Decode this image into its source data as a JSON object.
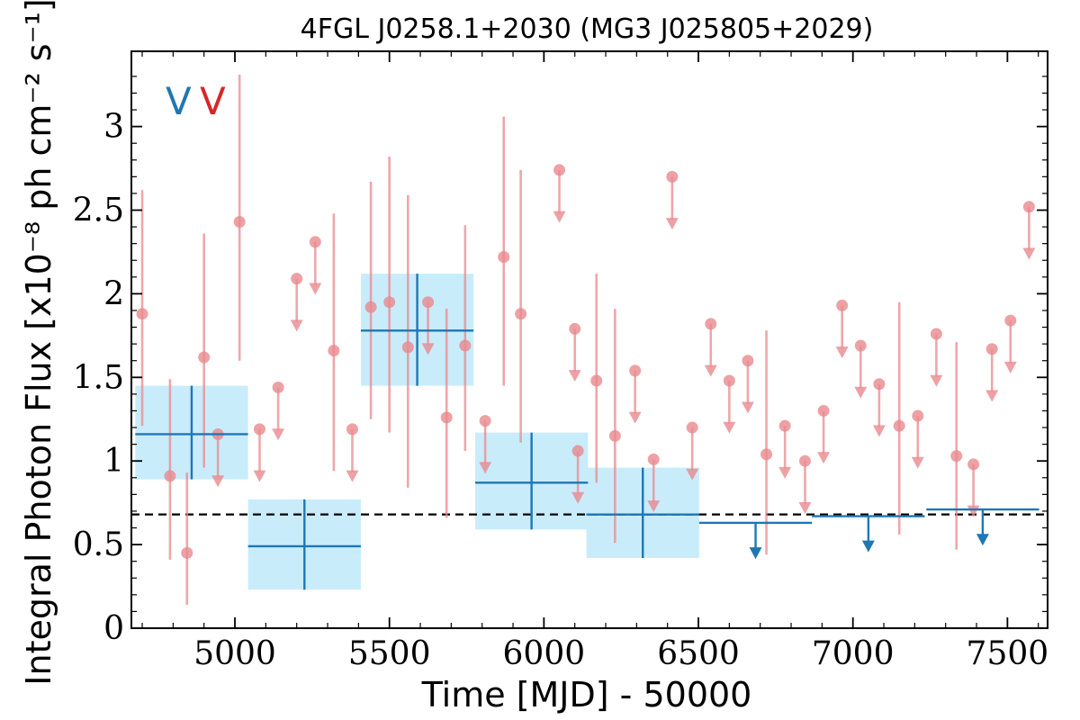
{
  "chart_data": {
    "type": "scatter",
    "title": "4FGL J0258.1+2030 (MG3 J025805+2029)",
    "xlabel": "Time [MJD] - 50000",
    "ylabel": "Integral Photon Flux [x10⁻⁸ ph cm⁻² s⁻¹]",
    "xlim": [
      4665,
      7630
    ],
    "ylim": [
      0,
      3.45
    ],
    "x_ticks": [
      5000,
      5500,
      6000,
      6500,
      7000,
      7500
    ],
    "x_tick_labels": [
      "5000",
      "5500",
      "6000",
      "6500",
      "7000",
      "7500"
    ],
    "y_ticks": [
      0,
      0.5,
      1,
      1.5,
      2,
      2.5,
      3
    ],
    "y_tick_labels": [
      "0",
      "0.5",
      "1",
      "1.5",
      "2",
      "2.5",
      "3"
    ],
    "grid": false,
    "reference_line": {
      "y": 0.68,
      "style": "dashed",
      "color": "#000000"
    },
    "legend": {
      "placement": "top-left",
      "entries": [
        {
          "label": "V",
          "color": "#1f77b4"
        },
        {
          "label": "V",
          "color": "#d62728"
        }
      ]
    },
    "colors": {
      "long_bin": "#1f77b4",
      "long_bin_box": "#c9ecfb",
      "short_bin": "#e88a8e",
      "short_bin_marker": "#e88a8e"
    },
    "series": [
      {
        "color_key": "long_bin",
        "bin_width": 365,
        "detections": [
          {
            "x": 4860,
            "y": 1.16,
            "yerr_low": 0.27,
            "yerr_high": 0.29
          },
          {
            "x": 5225,
            "y": 0.49,
            "yerr_low": 0.26,
            "yerr_high": 0.28
          },
          {
            "x": 5590,
            "y": 1.78,
            "yerr_low": 0.33,
            "yerr_high": 0.34
          },
          {
            "x": 5960,
            "y": 0.87,
            "yerr_low": 0.28,
            "yerr_high": 0.3
          },
          {
            "x": 6320,
            "y": 0.68,
            "yerr_low": 0.26,
            "yerr_high": 0.28
          }
        ],
        "upper_limits": [
          {
            "x": 6685,
            "y": 0.63
          },
          {
            "x": 7050,
            "y": 0.67
          },
          {
            "x": 7420,
            "y": 0.71
          }
        ]
      },
      {
        "color_key": "short_bin",
        "detections": [
          {
            "x": 4700,
            "y": 1.88,
            "yerr_low": 0.67,
            "yerr_high": 0.74
          },
          {
            "x": 4790,
            "y": 0.91,
            "yerr_low": 0.5,
            "yerr_high": 0.58
          },
          {
            "x": 4845,
            "y": 0.45,
            "yerr_low": 0.31,
            "yerr_high": 0.48
          },
          {
            "x": 4900,
            "y": 1.62,
            "yerr_low": 0.66,
            "yerr_high": 0.74
          },
          {
            "x": 5015,
            "y": 2.43,
            "yerr_low": 0.83,
            "yerr_high": 0.88
          },
          {
            "x": 5320,
            "y": 1.66,
            "yerr_low": 0.72,
            "yerr_high": 0.82
          },
          {
            "x": 5440,
            "y": 1.92,
            "yerr_low": 0.67,
            "yerr_high": 0.75
          },
          {
            "x": 5500,
            "y": 1.95,
            "yerr_low": 0.78,
            "yerr_high": 0.87
          },
          {
            "x": 5560,
            "y": 1.68,
            "yerr_low": 0.84,
            "yerr_high": 0.91
          },
          {
            "x": 5685,
            "y": 1.26,
            "yerr_low": 0.6,
            "yerr_high": 0.65
          },
          {
            "x": 5745,
            "y": 1.69,
            "yerr_low": 0.63,
            "yerr_high": 0.72
          },
          {
            "x": 5870,
            "y": 2.22,
            "yerr_low": 0.77,
            "yerr_high": 0.84
          },
          {
            "x": 5925,
            "y": 1.88,
            "yerr_low": 0.77,
            "yerr_high": 0.86
          },
          {
            "x": 6170,
            "y": 1.48,
            "yerr_low": 0.61,
            "yerr_high": 0.64
          },
          {
            "x": 6230,
            "y": 1.15,
            "yerr_low": 0.64,
            "yerr_high": 0.76
          },
          {
            "x": 6720,
            "y": 1.04,
            "yerr_low": 0.6,
            "yerr_high": 0.74
          },
          {
            "x": 7150,
            "y": 1.21,
            "yerr_low": 0.65,
            "yerr_high": 0.74
          },
          {
            "x": 7335,
            "y": 1.03,
            "yerr_low": 0.56,
            "yerr_high": 0.68
          }
        ],
        "upper_limits": [
          {
            "x": 4945,
            "y": 1.16
          },
          {
            "x": 5080,
            "y": 1.19
          },
          {
            "x": 5140,
            "y": 1.44
          },
          {
            "x": 5200,
            "y": 2.09
          },
          {
            "x": 5260,
            "y": 2.31
          },
          {
            "x": 5380,
            "y": 1.19
          },
          {
            "x": 5625,
            "y": 1.95
          },
          {
            "x": 5810,
            "y": 1.24
          },
          {
            "x": 6050,
            "y": 2.74
          },
          {
            "x": 6100,
            "y": 1.79
          },
          {
            "x": 6110,
            "y": 1.06
          },
          {
            "x": 6295,
            "y": 1.54
          },
          {
            "x": 6355,
            "y": 1.01
          },
          {
            "x": 6415,
            "y": 2.7
          },
          {
            "x": 6480,
            "y": 1.2
          },
          {
            "x": 6540,
            "y": 1.82
          },
          {
            "x": 6600,
            "y": 1.48
          },
          {
            "x": 6660,
            "y": 1.6
          },
          {
            "x": 6780,
            "y": 1.21
          },
          {
            "x": 6845,
            "y": 1.0
          },
          {
            "x": 6905,
            "y": 1.3
          },
          {
            "x": 6965,
            "y": 1.93
          },
          {
            "x": 7025,
            "y": 1.69
          },
          {
            "x": 7085,
            "y": 1.46
          },
          {
            "x": 7210,
            "y": 1.27
          },
          {
            "x": 7270,
            "y": 1.76
          },
          {
            "x": 7390,
            "y": 0.98
          },
          {
            "x": 7450,
            "y": 1.67
          },
          {
            "x": 7510,
            "y": 1.84
          },
          {
            "x": 7570,
            "y": 2.52
          }
        ]
      }
    ]
  }
}
